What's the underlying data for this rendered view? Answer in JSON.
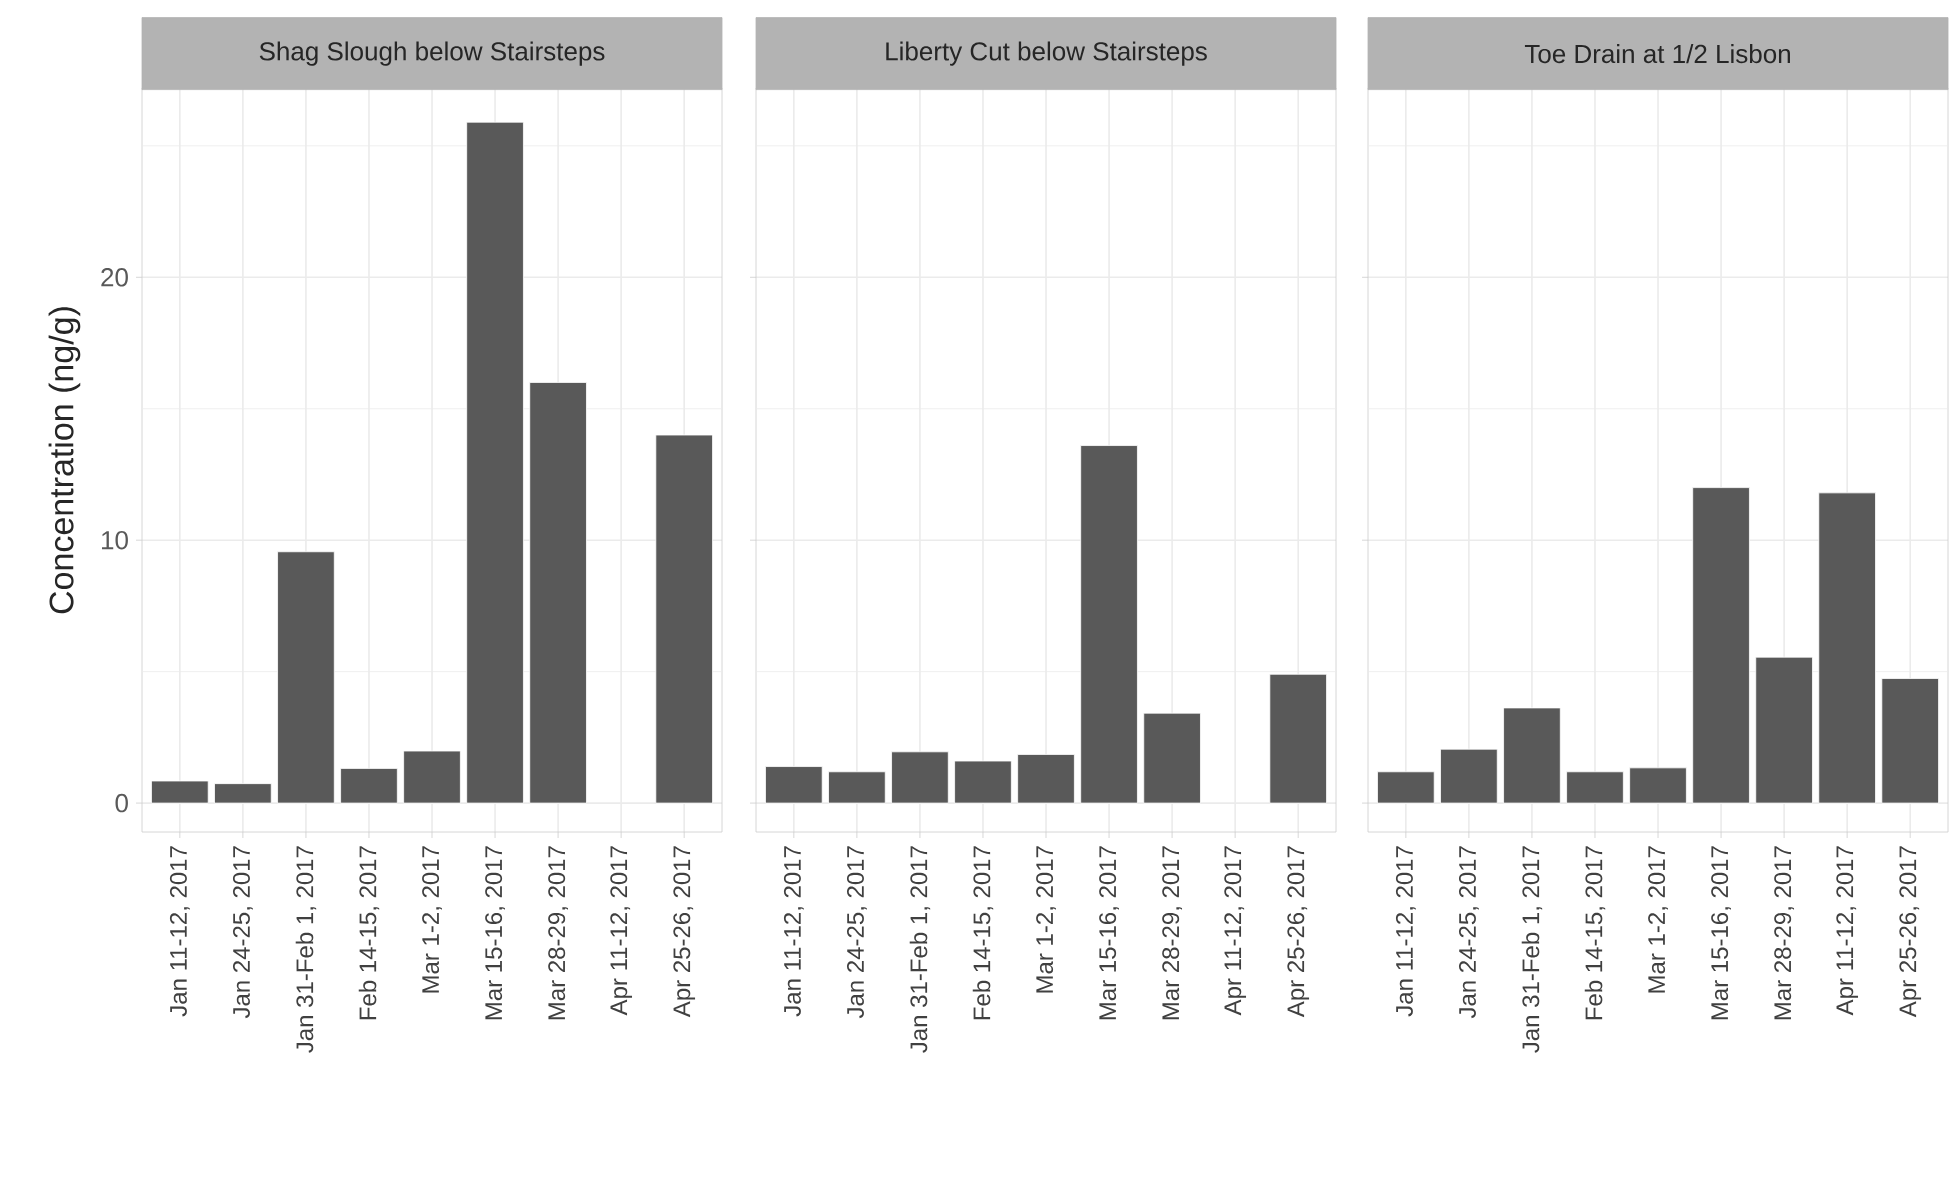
{
  "chart_data": [
    {
      "type": "bar",
      "title": "Shag Slough below Stairsteps",
      "ylabel": "Concentration (ng/g)",
      "categories": [
        "Jan 11-12, 2017",
        "Jan 24-25, 2017",
        "Jan 31-Feb 1, 2017",
        "Feb 14-15, 2017",
        "Mar 1-2, 2017",
        "Mar 15-16, 2017",
        "Mar 28-29, 2017",
        "Apr 11-12, 2017",
        "Apr 25-26, 2017"
      ],
      "values": [
        0.84,
        0.74,
        9.56,
        1.32,
        1.98,
        25.9,
        16.0,
        null,
        14.0
      ],
      "color": "#595959",
      "ylim": [
        -1.1,
        27.2
      ],
      "yticks": [
        0,
        {
          "value": 5,
          "label": null
        },
        10,
        {
          "value": 15,
          "label": null
        },
        20,
        {
          "value": 25,
          "label": null
        }
      ],
      "grid": true
    },
    {
      "type": "bar",
      "title": "Liberty Cut below Stairsteps",
      "categories": [
        "Jan 11-12, 2017",
        "Jan 24-25, 2017",
        "Jan 31-Feb 1, 2017",
        "Feb 14-15, 2017",
        "Mar 1-2, 2017",
        "Mar 15-16, 2017",
        "Mar 28-29, 2017",
        "Apr 11-12, 2017",
        "Apr 25-26, 2017"
      ],
      "values": [
        1.39,
        1.19,
        1.95,
        1.6,
        1.85,
        13.6,
        3.42,
        null,
        4.9
      ],
      "color": "#595959",
      "ylim": [
        -1.1,
        27.2
      ],
      "yticks": [
        0,
        {
          "value": 5,
          "label": null
        },
        10,
        {
          "value": 15,
          "label": null
        },
        20,
        {
          "value": 25,
          "label": null
        }
      ],
      "grid": true,
      "tick_labels": "x"
    },
    {
      "type": "bar",
      "title": "Toe Drain at 1/2 Lisbon",
      "categories": [
        "Jan 11-12, 2017",
        "Jan 24-25, 2017",
        "Jan 31-Feb 1, 2017",
        "Feb 14-15, 2017",
        "Mar 1-2, 2017",
        "Mar 15-16, 2017",
        "Mar 28-29, 2017",
        "Apr 11-12, 2017",
        "Apr 25-26, 2017"
      ],
      "values": [
        1.19,
        2.05,
        3.62,
        1.19,
        1.34,
        12.0,
        5.55,
        11.8,
        4.74
      ],
      "color": "#595959",
      "ylim": [
        -1.1,
        27.2
      ],
      "yticks": [
        0,
        {
          "value": 5,
          "label": null
        },
        10,
        {
          "value": 15,
          "label": null
        },
        20,
        {
          "value": 25,
          "label": null
        }
      ],
      "grid": true,
      "tick_labels": "x"
    }
  ]
}
